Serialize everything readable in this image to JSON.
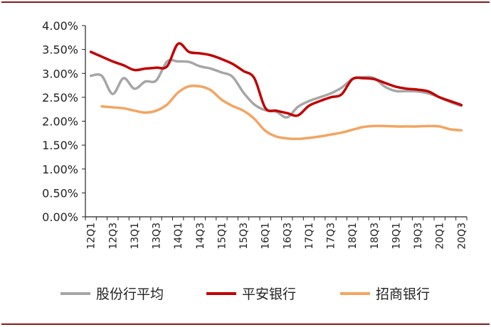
{
  "colors": {
    "border": "#8b1a1a",
    "axis": "#222222",
    "series": [
      "#a6a6a6",
      "#c00000",
      "#f4a460"
    ]
  },
  "chart_data": {
    "type": "line",
    "title": "",
    "xlabel": "",
    "ylabel": "",
    "ylim": [
      0,
      4.0
    ],
    "yticks": [
      "0.00%",
      "0.50%",
      "1.00%",
      "1.50%",
      "2.00%",
      "2.50%",
      "3.00%",
      "3.50%",
      "4.00%"
    ],
    "grid": false,
    "legend": "bottom",
    "x": [
      "12Q1",
      "12Q2",
      "12Q3",
      "12Q4",
      "13Q1",
      "13Q2",
      "13Q3",
      "13Q4",
      "14Q1",
      "14Q2",
      "14Q3",
      "14Q4",
      "15Q1",
      "15Q2",
      "15Q3",
      "15Q4",
      "16Q1",
      "16Q2",
      "16Q3",
      "16Q4",
      "17Q1",
      "17Q2",
      "17Q3",
      "17Q4",
      "18Q1",
      "18Q2",
      "18Q3",
      "18Q4",
      "19Q1",
      "19Q2",
      "19Q3",
      "19Q4",
      "20Q1",
      "20Q2",
      "20Q3"
    ],
    "xtick_labels": [
      "12Q1",
      "12Q3",
      "13Q1",
      "13Q3",
      "14Q1",
      "14Q3",
      "15Q1",
      "15Q3",
      "16Q1",
      "16Q3",
      "17Q1",
      "17Q3",
      "18Q1",
      "18Q3",
      "19Q1",
      "19Q3",
      "20Q1",
      "20Q3"
    ],
    "series": [
      {
        "name": "股份行平均",
        "values": [
          2.95,
          2.95,
          2.57,
          2.9,
          2.68,
          2.83,
          2.85,
          3.25,
          3.25,
          3.24,
          3.15,
          3.1,
          3.02,
          2.93,
          2.6,
          2.35,
          2.23,
          2.2,
          2.08,
          2.3,
          2.42,
          2.5,
          2.58,
          2.7,
          2.88,
          2.92,
          2.9,
          2.72,
          2.63,
          2.63,
          2.62,
          2.58,
          2.5,
          2.4,
          2.32
        ]
      },
      {
        "name": "平安银行",
        "values": [
          3.45,
          3.35,
          3.25,
          3.17,
          3.07,
          3.1,
          3.12,
          3.15,
          3.62,
          3.45,
          3.42,
          3.38,
          3.3,
          3.2,
          3.05,
          2.9,
          2.28,
          2.22,
          2.17,
          2.12,
          2.32,
          2.42,
          2.5,
          2.56,
          2.88,
          2.9,
          2.88,
          2.8,
          2.72,
          2.68,
          2.66,
          2.62,
          2.5,
          2.42,
          2.34
        ]
      },
      {
        "name": "招商银行",
        "values": [
          null,
          2.31,
          2.29,
          2.27,
          2.22,
          2.18,
          2.22,
          2.35,
          2.6,
          2.73,
          2.73,
          2.65,
          2.45,
          2.32,
          2.22,
          2.05,
          1.8,
          1.68,
          1.64,
          1.63,
          1.65,
          1.68,
          1.72,
          1.76,
          1.82,
          1.88,
          1.9,
          1.9,
          1.89,
          1.89,
          1.89,
          1.9,
          1.89,
          1.83,
          1.81
        ]
      }
    ]
  }
}
